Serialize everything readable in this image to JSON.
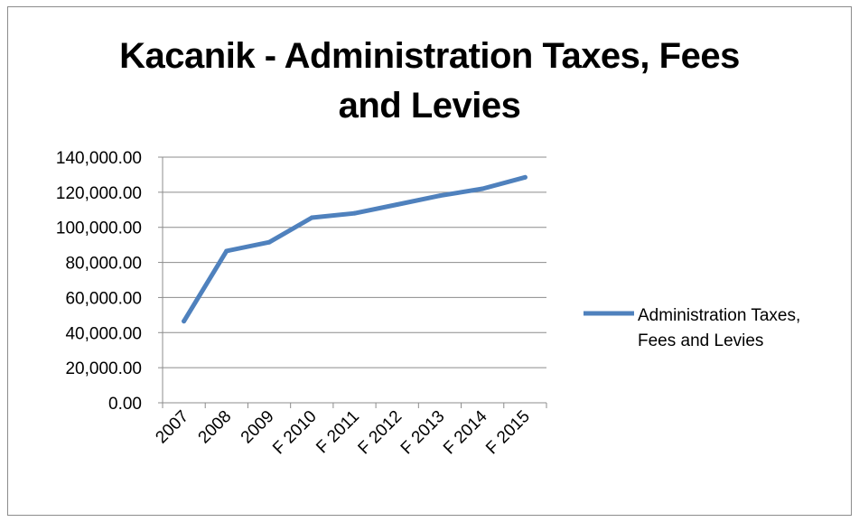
{
  "chart_data": {
    "type": "line",
    "title_lines": [
      "Kacanik - Administration Taxes, Fees",
      "and Levies"
    ],
    "categories": [
      "2007",
      "2008",
      "2009",
      "F 2010",
      "F 2011",
      "F 2012",
      "F 2013",
      "F 2014",
      "F 2015"
    ],
    "series": [
      {
        "name": "Administration Taxes, Fees and Levies",
        "legend_lines": [
          "Administration Taxes,",
          "Fees and Levies"
        ],
        "color": "#4f81bd",
        "values": [
          46500,
          86500,
          91500,
          105500,
          108000,
          113000,
          118000,
          122000,
          128500
        ]
      }
    ],
    "y_ticks": [
      "0.00",
      "20,000.00",
      "40,000.00",
      "60,000.00",
      "80,000.00",
      "100,000.00",
      "120,000.00",
      "140,000.00"
    ],
    "ylim": [
      0,
      140000
    ],
    "y_step": 20000,
    "grid": true,
    "legend_position": "right"
  }
}
